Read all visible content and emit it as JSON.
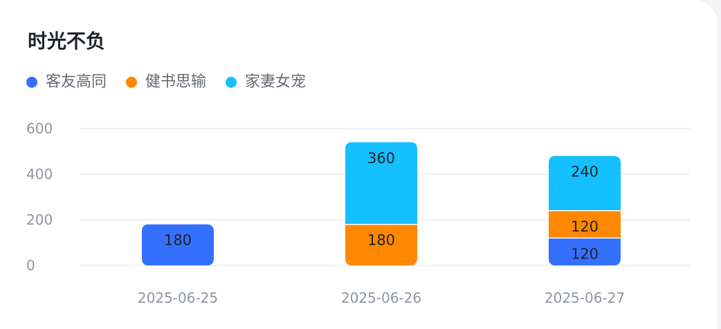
{
  "chart_data": {
    "type": "bar",
    "stacked": true,
    "title": "时光不负",
    "categories": [
      "2025-06-25",
      "2025-06-26",
      "2025-06-27"
    ],
    "series": [
      {
        "name": "客友高同",
        "color": "#3370ff",
        "values": [
          180,
          0,
          120
        ]
      },
      {
        "name": "健书思输",
        "color": "#ff8800",
        "values": [
          0,
          180,
          120
        ]
      },
      {
        "name": "家妻女宠",
        "color": "#14c0ff",
        "values": [
          0,
          360,
          240
        ]
      }
    ],
    "yticks": [
      0,
      200,
      400,
      600
    ],
    "ylim": [
      0,
      600
    ],
    "grid": true,
    "legend_position": "top-left",
    "data_labels": true
  }
}
